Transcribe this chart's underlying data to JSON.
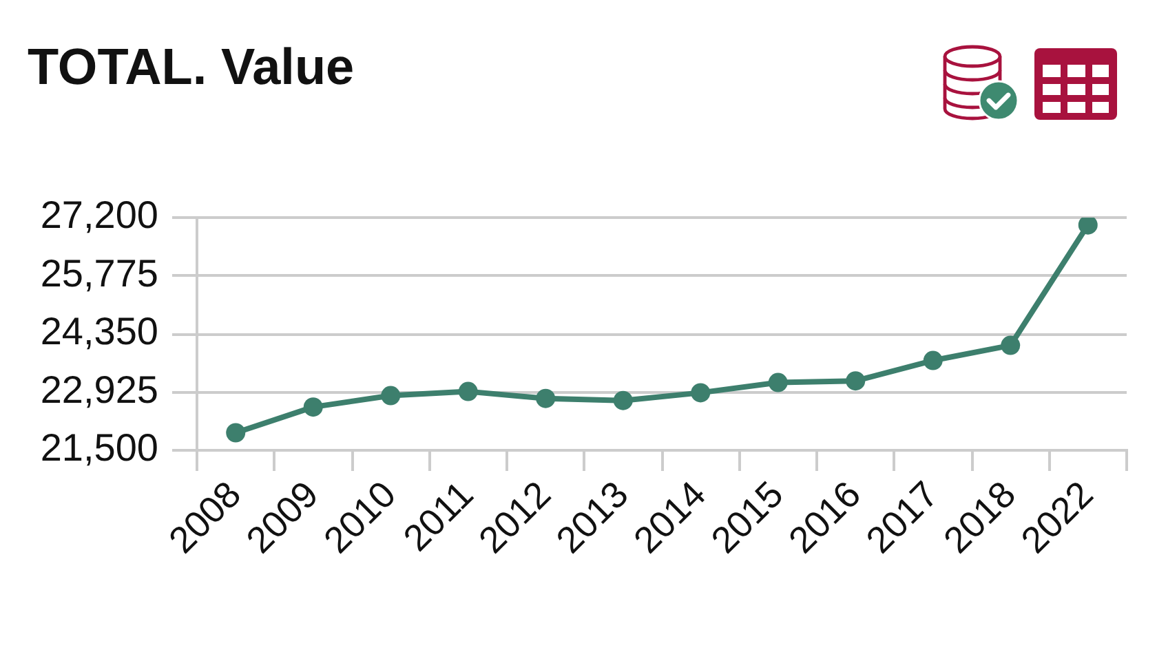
{
  "chart_data": {
    "type": "line",
    "title": "TOTAL. Value",
    "categories": [
      "2008",
      "2009",
      "2010",
      "2011",
      "2012",
      "2013",
      "2014",
      "2015",
      "2016",
      "2017",
      "2018",
      "2022"
    ],
    "values": [
      21930,
      22560,
      22840,
      22940,
      22770,
      22720,
      22910,
      23160,
      23200,
      23700,
      24070,
      27020
    ],
    "color": "#3d7f6d",
    "ylim": [
      21500,
      27200
    ],
    "yticks": [
      {
        "value": 21500,
        "label": "21,500"
      },
      {
        "value": 22925,
        "label": "22,925"
      },
      {
        "value": 24350,
        "label": "24,350"
      },
      {
        "value": 25775,
        "label": "25,775"
      },
      {
        "value": 27200,
        "label": "27,200"
      }
    ],
    "grid": "y",
    "legend": false,
    "marker": "circle",
    "line_style": "solid"
  }
}
